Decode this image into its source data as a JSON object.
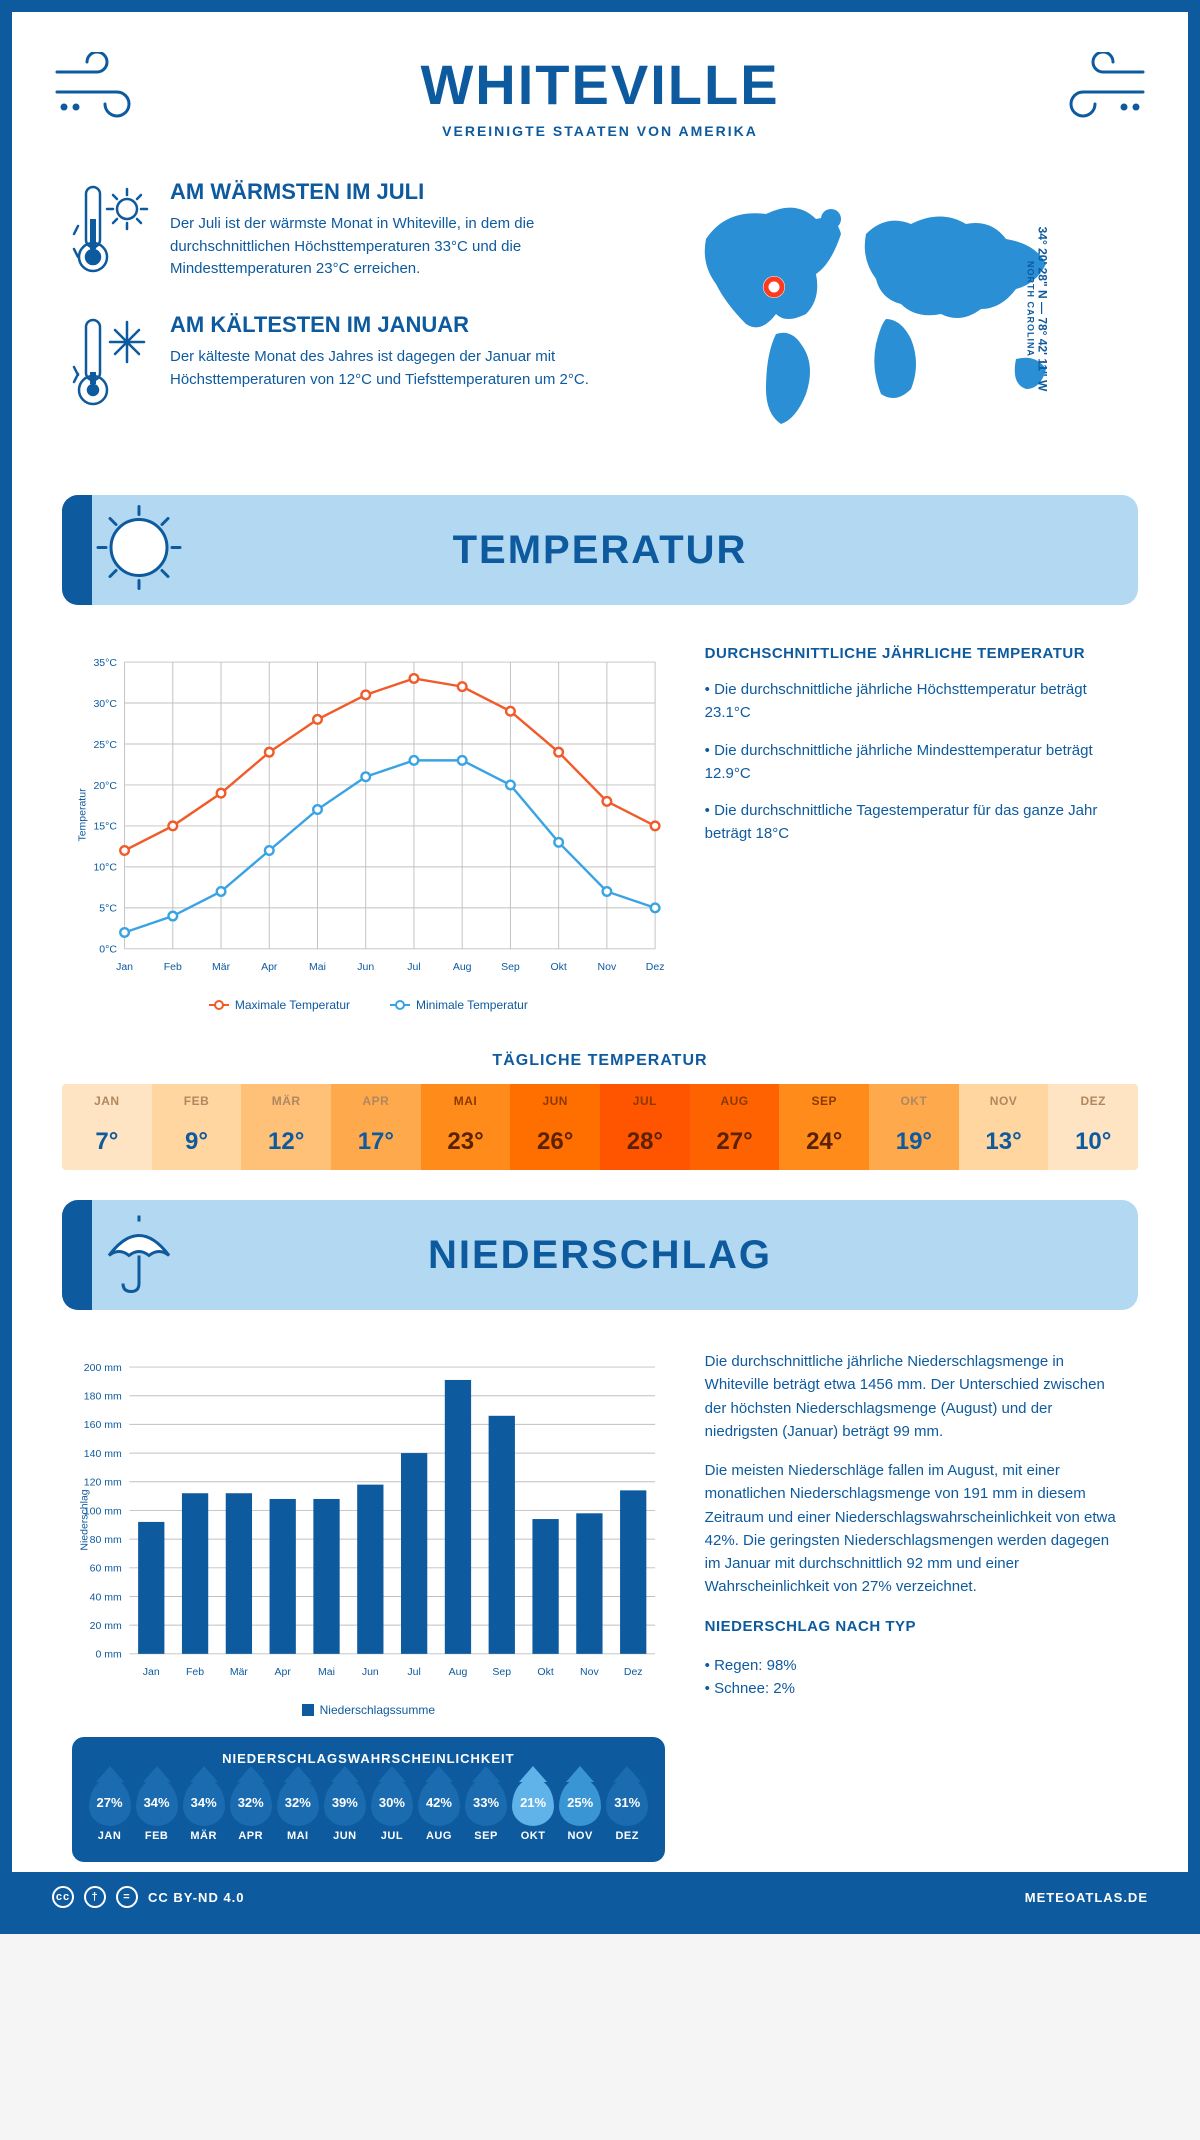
{
  "header": {
    "title": "WHITEVILLE",
    "subtitle": "VEREINIGTE STAATEN VON AMERIKA"
  },
  "coordinates": {
    "line": "34° 20' 28\" N — 78° 42' 11\" W",
    "region": "NORTH CAROLINA"
  },
  "intro": {
    "warm_heading": "AM WÄRMSTEN IM JULI",
    "warm_text": "Der Juli ist der wärmste Monat in Whiteville, in dem die durchschnittlichen Höchsttemperaturen 33°C und die Mindesttemperaturen 23°C erreichen.",
    "cold_heading": "AM KÄLTESTEN IM JANUAR",
    "cold_text": "Der kälteste Monat des Jahres ist dagegen der Januar mit Höchsttemperaturen von 12°C und Tiefsttemperaturen um 2°C."
  },
  "sections": {
    "temperature": "TEMPERATUR",
    "precip": "NIEDERSCHLAG"
  },
  "temp_chart": {
    "type": "line",
    "y_label": "Temperatur",
    "months": [
      "Jan",
      "Feb",
      "Mär",
      "Apr",
      "Mai",
      "Jun",
      "Jul",
      "Aug",
      "Sep",
      "Okt",
      "Nov",
      "Dez"
    ],
    "max_values": [
      12,
      15,
      19,
      24,
      28,
      31,
      33,
      32,
      29,
      24,
      18,
      15
    ],
    "min_values": [
      2,
      4,
      7,
      12,
      17,
      21,
      23,
      23,
      20,
      13,
      7,
      5
    ],
    "max_color": "#f15a29",
    "min_color": "#3aa3e3",
    "grid_color": "#c0c0c0",
    "ylim": [
      0,
      35
    ],
    "ytick_step": 5,
    "legend_max": "Maximale Temperatur",
    "legend_min": "Minimale Temperatur"
  },
  "temp_side": {
    "heading": "DURCHSCHNITTLICHE JÄHRLICHE TEMPERATUR",
    "bullet1": "• Die durchschnittliche jährliche Höchsttemperatur beträgt 23.1°C",
    "bullet2": "• Die durchschnittliche jährliche Mindesttemperatur beträgt 12.9°C",
    "bullet3": "• Die durchschnittliche Tagestemperatur für das ganze Jahr beträgt 18°C"
  },
  "daily_temp": {
    "heading": "TÄGLICHE TEMPERATUR",
    "months": [
      "JAN",
      "FEB",
      "MÄR",
      "APR",
      "MAI",
      "JUN",
      "JUL",
      "AUG",
      "SEP",
      "OKT",
      "NOV",
      "DEZ"
    ],
    "values": [
      "7°",
      "9°",
      "12°",
      "17°",
      "23°",
      "26°",
      "28°",
      "27°",
      "24°",
      "19°",
      "13°",
      "10°"
    ],
    "colors": [
      "#ffe4c4",
      "#ffd6a0",
      "#ffc078",
      "#ffa94d",
      "#ff8c1a",
      "#ff6f00",
      "#ff5400",
      "#ff6200",
      "#ff8c1a",
      "#ffa94d",
      "#ffd6a0",
      "#ffe4c4"
    ],
    "dark_text_threshold": 3
  },
  "precip_chart": {
    "type": "bar",
    "y_label": "Niederschlag",
    "months": [
      "Jan",
      "Feb",
      "Mär",
      "Apr",
      "Mai",
      "Jun",
      "Jul",
      "Aug",
      "Sep",
      "Okt",
      "Nov",
      "Dez"
    ],
    "values": [
      92,
      112,
      112,
      108,
      108,
      118,
      140,
      191,
      166,
      94,
      98,
      114
    ],
    "bar_color": "#0d5a9e",
    "grid_color": "#c0c0c0",
    "ylim": [
      0,
      200
    ],
    "ytick_step": 20,
    "legend": "Niederschlagssumme"
  },
  "precip_text": {
    "p1": "Die durchschnittliche jährliche Niederschlagsmenge in Whiteville beträgt etwa 1456 mm. Der Unterschied zwischen der höchsten Niederschlagsmenge (August) und der niedrigsten (Januar) beträgt 99 mm.",
    "p2": "Die meisten Niederschläge fallen im August, mit einer monatlichen Niederschlagsmenge von 191 mm in diesem Zeitraum und einer Niederschlagswahrscheinlichkeit von etwa 42%. Die geringsten Niederschlagsmengen werden dagegen im Januar mit durchschnittlich 92 mm und einer Wahrscheinlichkeit von 27% verzeichnet.",
    "type_heading": "NIEDERSCHLAG NACH TYP",
    "type1": "• Regen: 98%",
    "type2": "• Schnee: 2%"
  },
  "precip_prob": {
    "heading": "NIEDERSCHLAGSWAHRSCHEINLICHKEIT",
    "months": [
      "JAN",
      "FEB",
      "MÄR",
      "APR",
      "MAI",
      "JUN",
      "JUL",
      "AUG",
      "SEP",
      "OKT",
      "NOV",
      "DEZ"
    ],
    "values": [
      "27%",
      "34%",
      "34%",
      "32%",
      "32%",
      "39%",
      "30%",
      "42%",
      "33%",
      "21%",
      "25%",
      "31%"
    ],
    "colors": [
      "#1a6bb0",
      "#1a6bb0",
      "#1a6bb0",
      "#1a6bb0",
      "#1a6bb0",
      "#1a6bb0",
      "#1a6bb0",
      "#1a6bb0",
      "#1a6bb0",
      "#5fb3e8",
      "#3a95d4",
      "#1a6bb0"
    ]
  },
  "footer": {
    "license": "CC BY-ND 4.0",
    "site": "METEOATLAS.DE"
  },
  "colors": {
    "primary": "#0d5a9e",
    "banner_bg": "#b3d9f2",
    "marker": "#ff3b1f"
  }
}
